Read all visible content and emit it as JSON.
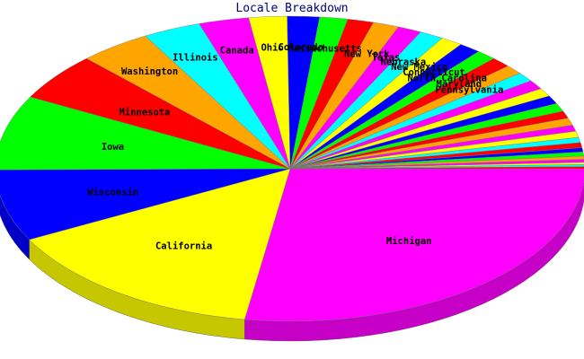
{
  "chart_data": {
    "type": "pie",
    "title": "Locale Breakdown",
    "start_angle_deg": 0,
    "direction": "clockwise",
    "slices": [
      {
        "label": "Michigan",
        "value": 25.0,
        "color": "#ff00ff"
      },
      {
        "label": "California",
        "value": 13.5,
        "color": "#ffff00"
      },
      {
        "label": "Wisconsin",
        "value": 6.9,
        "color": "#0000ff"
      },
      {
        "label": "Iowa",
        "value": 7.2,
        "color": "#00ff00"
      },
      {
        "label": "Minnesota",
        "value": 4.6,
        "color": "#ff0000"
      },
      {
        "label": "Washington",
        "value": 3.6,
        "color": "#ffa500"
      },
      {
        "label": "Illinois",
        "value": 2.9,
        "color": "#00ffff"
      },
      {
        "label": "Canada",
        "value": 2.5,
        "color": "#ff00ff"
      },
      {
        "label": "Ohio",
        "value": 1.9,
        "color": "#ffff00"
      },
      {
        "label": "Colorado",
        "value": 1.6,
        "color": "#0000ff"
      },
      {
        "label": "Massachusetts",
        "value": 1.4,
        "color": "#00ff00"
      },
      {
        "label": "",
        "value": 1.3,
        "color": "#ff0000"
      },
      {
        "label": "New York",
        "value": 1.3,
        "color": "#ffa500"
      },
      {
        "label": "Texas",
        "value": 1.2,
        "color": "#ff00ff"
      },
      {
        "label": "Nebraska",
        "value": 1.2,
        "color": "#00ffff"
      },
      {
        "label": "New Mexico",
        "value": 1.1,
        "color": "#ffff00"
      },
      {
        "label": "Connecticut",
        "value": 1.1,
        "color": "#0000ff"
      },
      {
        "label": "North Carolina",
        "value": 1.0,
        "color": "#00ff00"
      },
      {
        "label": "Maryland",
        "value": 1.0,
        "color": "#ff0000"
      },
      {
        "label": "Pennsylvania",
        "value": 0.9,
        "color": "#ffa500"
      },
      {
        "label": "",
        "value": 0.9,
        "color": "#00ffff"
      },
      {
        "label": "",
        "value": 0.9,
        "color": "#ff00ff"
      },
      {
        "label": "",
        "value": 0.8,
        "color": "#ffff00"
      },
      {
        "label": "",
        "value": 0.8,
        "color": "#0000ff"
      },
      {
        "label": "",
        "value": 0.8,
        "color": "#00ff00"
      },
      {
        "label": "",
        "value": 0.7,
        "color": "#ff0000"
      },
      {
        "label": "",
        "value": 0.7,
        "color": "#ffa500"
      },
      {
        "label": "",
        "value": 0.6,
        "color": "#ff00ff"
      },
      {
        "label": "",
        "value": 0.6,
        "color": "#ffff00"
      },
      {
        "label": "",
        "value": 0.5,
        "color": "#00ffff"
      },
      {
        "label": "",
        "value": 0.5,
        "color": "#ff0000"
      },
      {
        "label": "",
        "value": 0.4,
        "color": "#0000ff"
      },
      {
        "label": "",
        "value": 0.4,
        "color": "#00ff00"
      },
      {
        "label": "",
        "value": 0.3,
        "color": "#ffa500"
      },
      {
        "label": "",
        "value": 0.3,
        "color": "#ff00ff"
      },
      {
        "label": "",
        "value": 0.2,
        "color": "#ffff00"
      },
      {
        "label": "",
        "value": 0.2,
        "color": "#00ffff"
      },
      {
        "label": "",
        "value": 0.2,
        "color": "#ff0000"
      }
    ]
  }
}
